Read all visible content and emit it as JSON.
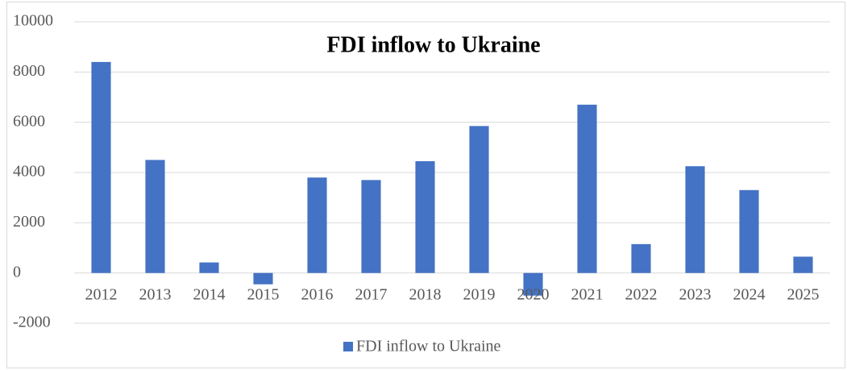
{
  "chart_data": {
    "type": "bar",
    "title": "FDI inflow to Ukraine",
    "categories": [
      "2012",
      "2013",
      "2014",
      "2015",
      "2016",
      "2017",
      "2018",
      "2019",
      "2020",
      "2021",
      "2022",
      "2023",
      "2024",
      "2025"
    ],
    "series": [
      {
        "name": "FDI inflow to Ukraine",
        "color": "#4472c4",
        "values": [
          8400,
          4500,
          420,
          -450,
          3800,
          3700,
          4450,
          5850,
          -900,
          6700,
          1150,
          4250,
          3300,
          650
        ]
      }
    ],
    "ylim": [
      -2000,
      10000
    ],
    "yticks": [
      -2000,
      0,
      2000,
      4000,
      6000,
      8000,
      10000
    ],
    "grid": true,
    "legend": "bottom"
  }
}
